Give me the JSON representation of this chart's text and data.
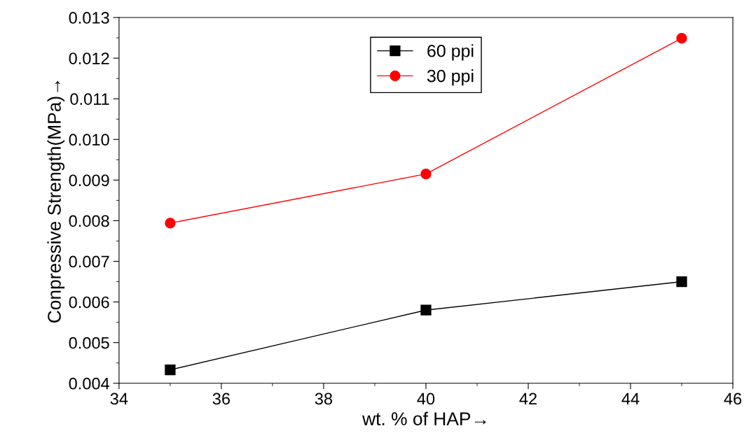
{
  "chart_data": {
    "type": "line",
    "xlabel": "wt. % of HAP→",
    "ylabel": "Conpressive Strength(MPa)→",
    "x": [
      35,
      40,
      45
    ],
    "series": [
      {
        "name": "60 ppi",
        "color": "#000000",
        "marker": "square",
        "values": [
          0.00433,
          0.0058,
          0.0065
        ]
      },
      {
        "name": "30 ppi",
        "color": "#ff0000",
        "marker": "circle",
        "values": [
          0.00794,
          0.00915,
          0.01249
        ]
      }
    ],
    "xlim": [
      34,
      46
    ],
    "xticks": [
      34,
      36,
      38,
      40,
      42,
      44,
      46
    ],
    "ylim": [
      0.004,
      0.013
    ],
    "yticks": [
      {
        "value": 0.004,
        "label": "0.004"
      },
      {
        "value": 0.005,
        "label": "0.005"
      },
      {
        "value": 0.006,
        "label": "0.006"
      },
      {
        "value": 0.007,
        "label": "0.007"
      },
      {
        "value": 0.008,
        "label": "0.008"
      },
      {
        "value": 0.009,
        "label": "0.009"
      },
      {
        "value": 0.01,
        "label": "0.010"
      },
      {
        "value": 0.011,
        "label": "0.011"
      },
      {
        "value": 0.012,
        "label": "0.012"
      },
      {
        "value": 0.013,
        "label": "0.013"
      }
    ],
    "grid": false,
    "legend": "top",
    "line_style": "solid"
  }
}
